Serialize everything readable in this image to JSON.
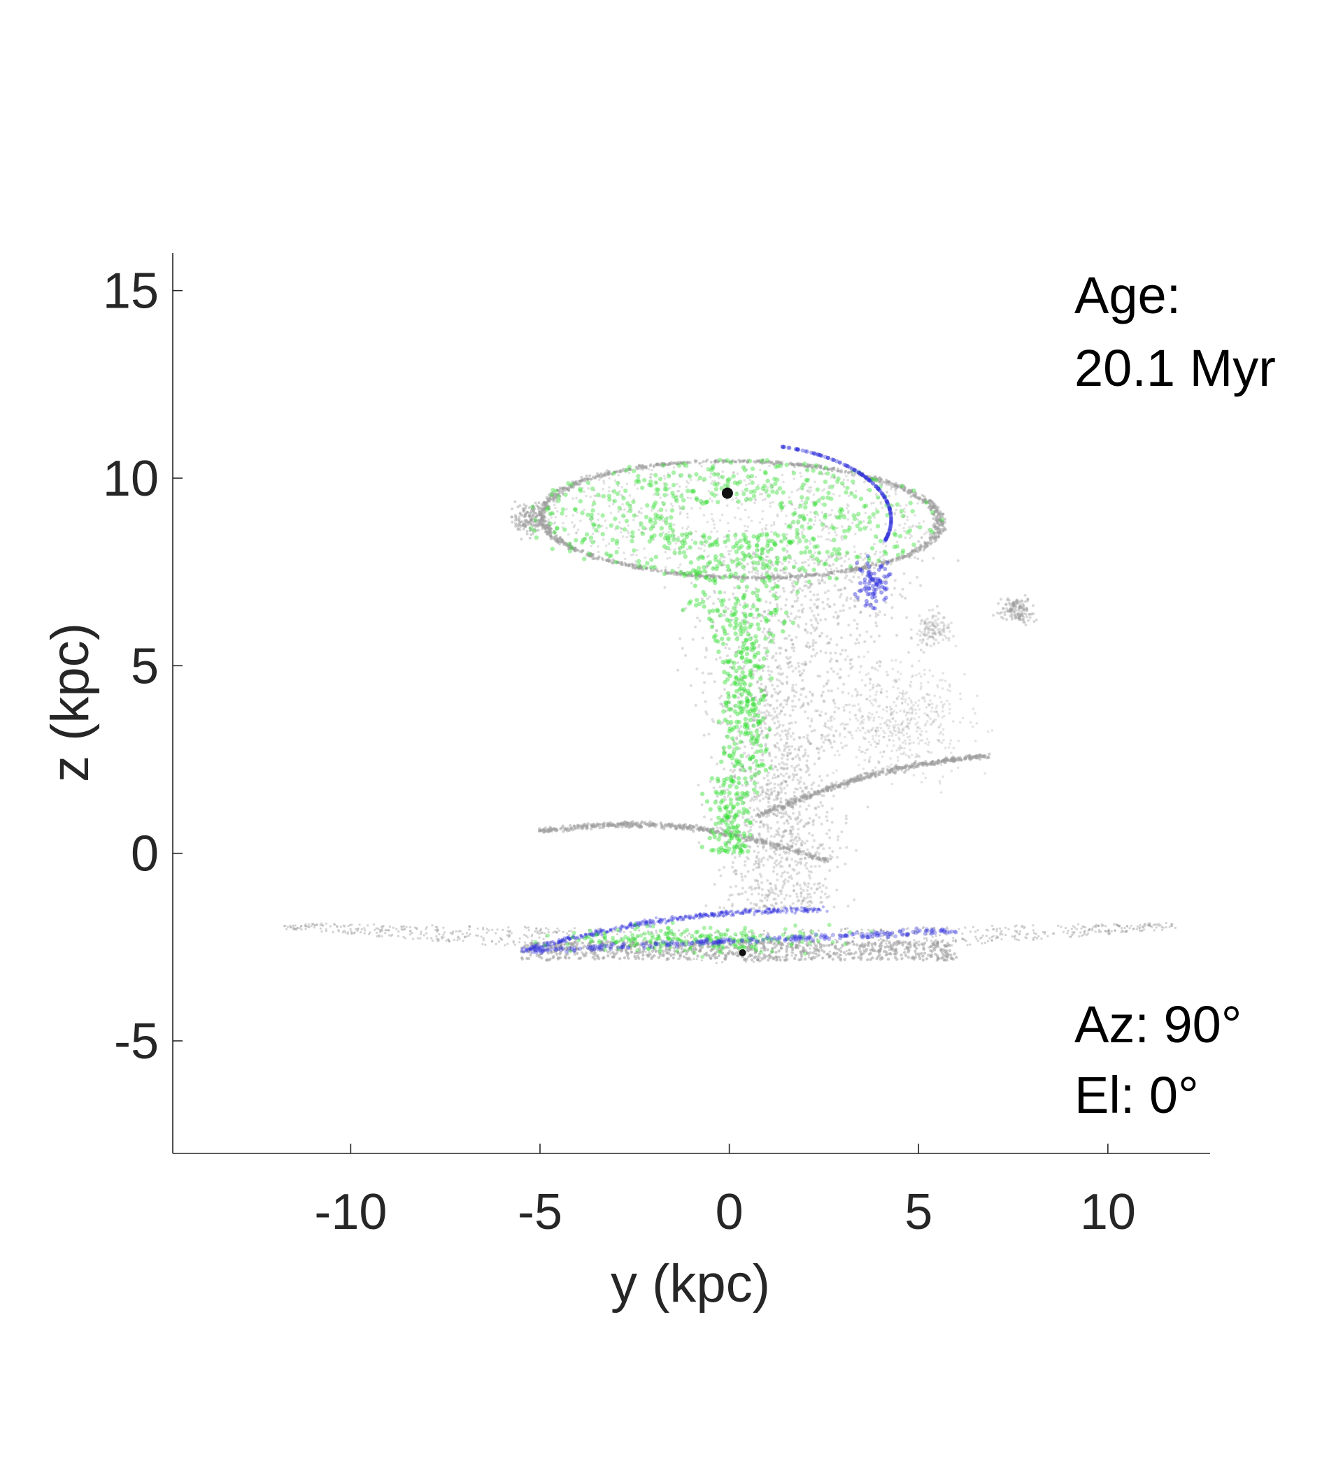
{
  "chart_data": {
    "type": "scatter",
    "xlabel": "y (kpc)",
    "ylabel": "z (kpc)",
    "xlim": [
      -14.7,
      12.7
    ],
    "ylim": [
      -8,
      16
    ],
    "xticks": [
      -10,
      -5,
      0,
      5,
      10
    ],
    "yticks": [
      -5,
      0,
      5,
      10,
      15
    ],
    "xtick_labels": [
      "-10",
      "-5",
      "0",
      "5",
      "10"
    ],
    "ytick_labels": [
      "-5",
      "0",
      "5",
      "10",
      "15"
    ],
    "annotations": {
      "age_label": "Age:",
      "age_value": "20.1 Myr",
      "az": "Az: 90°",
      "el": "El: 0°"
    },
    "grid": false,
    "box": "left-bottom axes only",
    "colors": {
      "gray_particles": "#9e9e9e",
      "green_particles": "#33dd33",
      "blue_particles": "#3333dd",
      "marker": "#111111",
      "axis": "#262626"
    },
    "features": {
      "upper_ring": {
        "center": [
          0.3,
          8.9
        ],
        "radius_y": 5.3,
        "radius_z": 1.55,
        "tilt_deg": -8
      },
      "lower_disk": {
        "y_range": [
          -11.8,
          11.8
        ],
        "z_top": -1.85,
        "z_bottom": -2.95
      },
      "streams": [
        {
          "from": [
            -5.0,
            0.6
          ],
          "to": [
            2.6,
            -0.2
          ]
        },
        {
          "from": [
            0.8,
            1.0
          ],
          "to": [
            6.8,
            2.6
          ]
        },
        {
          "from": [
            -5.5,
            -2.6
          ],
          "to": [
            2.5,
            -1.5
          ]
        }
      ],
      "black_points": [
        [
          -0.05,
          9.6
        ],
        [
          0.35,
          -2.65
        ]
      ]
    }
  }
}
